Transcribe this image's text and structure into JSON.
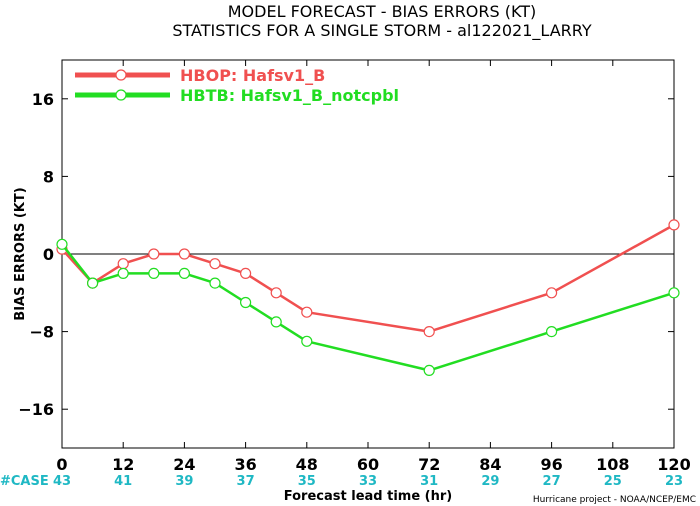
{
  "chart_data": {
    "type": "line",
    "title": "MODEL FORECAST - BIAS ERRORS (KT)",
    "subtitle": "STATISTICS FOR A SINGLE STORM - al122021_LARRY",
    "xlabel": "Forecast lead time (hr)",
    "ylabel": "BIAS ERRORS (KT)",
    "xlim": [
      0,
      120
    ],
    "ylim": [
      -20,
      20
    ],
    "x_ticks": [
      0,
      12,
      24,
      36,
      48,
      60,
      72,
      84,
      96,
      108,
      120
    ],
    "y_ticks": [
      -16,
      -8,
      0,
      8,
      16
    ],
    "zero_line": true,
    "legend_position": "top-left",
    "series": [
      {
        "name": "HBOP: Hafsv1_B",
        "color": "#f05050",
        "x": [
          0,
          6,
          12,
          18,
          24,
          30,
          36,
          42,
          48,
          72,
          96,
          120
        ],
        "y": [
          0.5,
          -3,
          -1,
          0,
          0,
          -1,
          -2,
          -4,
          -6,
          -8,
          -4,
          3
        ]
      },
      {
        "name": "HBTB: Hafsv1_B_notcpbl",
        "color": "#22dd22",
        "x": [
          0,
          6,
          12,
          18,
          24,
          30,
          36,
          42,
          48,
          72,
          96,
          120
        ],
        "y": [
          1,
          -3,
          -2,
          -2,
          -2,
          -3,
          -5,
          -7,
          -9,
          -12,
          -8,
          -4
        ]
      }
    ],
    "case_label": "#CASE",
    "case_counts": [
      {
        "x": 0,
        "n": "43"
      },
      {
        "x": 12,
        "n": "41"
      },
      {
        "x": 24,
        "n": "39"
      },
      {
        "x": 36,
        "n": "37"
      },
      {
        "x": 48,
        "n": "35"
      },
      {
        "x": 60,
        "n": "33"
      },
      {
        "x": 72,
        "n": "31"
      },
      {
        "x": 84,
        "n": "29"
      },
      {
        "x": 96,
        "n": "27"
      },
      {
        "x": 108,
        "n": "25"
      },
      {
        "x": 120,
        "n": "23"
      }
    ],
    "case_color": "#1fb8c4",
    "credit": "Hurricane project - NOAA/NCEP/EMC"
  }
}
